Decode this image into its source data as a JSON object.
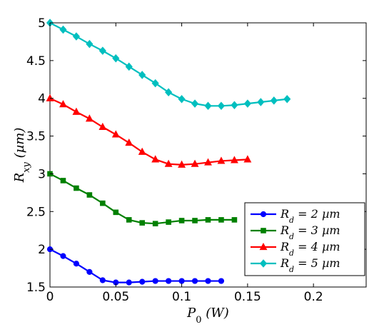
{
  "chart_data": {
    "type": "line",
    "xlabel": "P_0 (W)",
    "ylabel": "R_xy (µm)",
    "xlim": [
      0,
      0.24
    ],
    "ylim": [
      1.5,
      5
    ],
    "xticks": [
      0,
      0.05,
      0.1,
      0.15,
      0.2
    ],
    "xtick_labels": [
      "0",
      "0.05",
      "0.1",
      "0.15",
      "0.2"
    ],
    "yticks": [
      1.5,
      2,
      2.5,
      3,
      3.5,
      4,
      4.5,
      5
    ],
    "ytick_labels": [
      "1.5",
      "2",
      "2.5",
      "3",
      "3.5",
      "4",
      "4.5",
      "5"
    ],
    "grid": false,
    "legend_position": "bottom-right",
    "series": [
      {
        "name": "R_d = 2 µm",
        "label_main": "R",
        "label_sub": "d",
        "label_rest": " = 2 µm",
        "color": "#0000ff",
        "marker": "circle",
        "x": [
          0,
          0.01,
          0.02,
          0.03,
          0.04,
          0.05,
          0.06,
          0.07,
          0.08,
          0.09,
          0.1,
          0.11,
          0.12,
          0.13
        ],
        "y": [
          2.0,
          1.91,
          1.81,
          1.7,
          1.59,
          1.56,
          1.56,
          1.57,
          1.58,
          1.58,
          1.58,
          1.58,
          1.58,
          1.58
        ]
      },
      {
        "name": "R_d = 3 µm",
        "label_main": "R",
        "label_sub": "d",
        "label_rest": " = 3 µm",
        "color": "#008000",
        "marker": "square",
        "x": [
          0,
          0.01,
          0.02,
          0.03,
          0.04,
          0.05,
          0.06,
          0.07,
          0.08,
          0.09,
          0.1,
          0.11,
          0.12,
          0.13,
          0.14
        ],
        "y": [
          3.0,
          2.91,
          2.81,
          2.72,
          2.61,
          2.49,
          2.39,
          2.35,
          2.34,
          2.36,
          2.38,
          2.38,
          2.39,
          2.39,
          2.39
        ]
      },
      {
        "name": "R_d = 4 µm",
        "label_main": "R",
        "label_sub": "d",
        "label_rest": " = 4 µm",
        "color": "#ff0000",
        "marker": "triangle",
        "x": [
          0,
          0.01,
          0.02,
          0.03,
          0.04,
          0.05,
          0.06,
          0.07,
          0.08,
          0.09,
          0.1,
          0.11,
          0.12,
          0.13,
          0.14,
          0.15
        ],
        "y": [
          4.0,
          3.92,
          3.82,
          3.73,
          3.62,
          3.52,
          3.41,
          3.29,
          3.19,
          3.13,
          3.12,
          3.13,
          3.15,
          3.17,
          3.18,
          3.19
        ]
      },
      {
        "name": "R_d = 5 µm",
        "label_main": "R",
        "label_sub": "d",
        "label_rest": " = 5 µm",
        "color": "#00bfbf",
        "marker": "diamond",
        "x": [
          0,
          0.01,
          0.02,
          0.03,
          0.04,
          0.05,
          0.06,
          0.07,
          0.08,
          0.09,
          0.1,
          0.11,
          0.12,
          0.13,
          0.14,
          0.15,
          0.16,
          0.17,
          0.18
        ],
        "y": [
          5.0,
          4.91,
          4.82,
          4.72,
          4.63,
          4.53,
          4.42,
          4.31,
          4.2,
          4.08,
          3.99,
          3.93,
          3.9,
          3.9,
          3.91,
          3.93,
          3.95,
          3.97,
          3.99
        ]
      }
    ]
  }
}
